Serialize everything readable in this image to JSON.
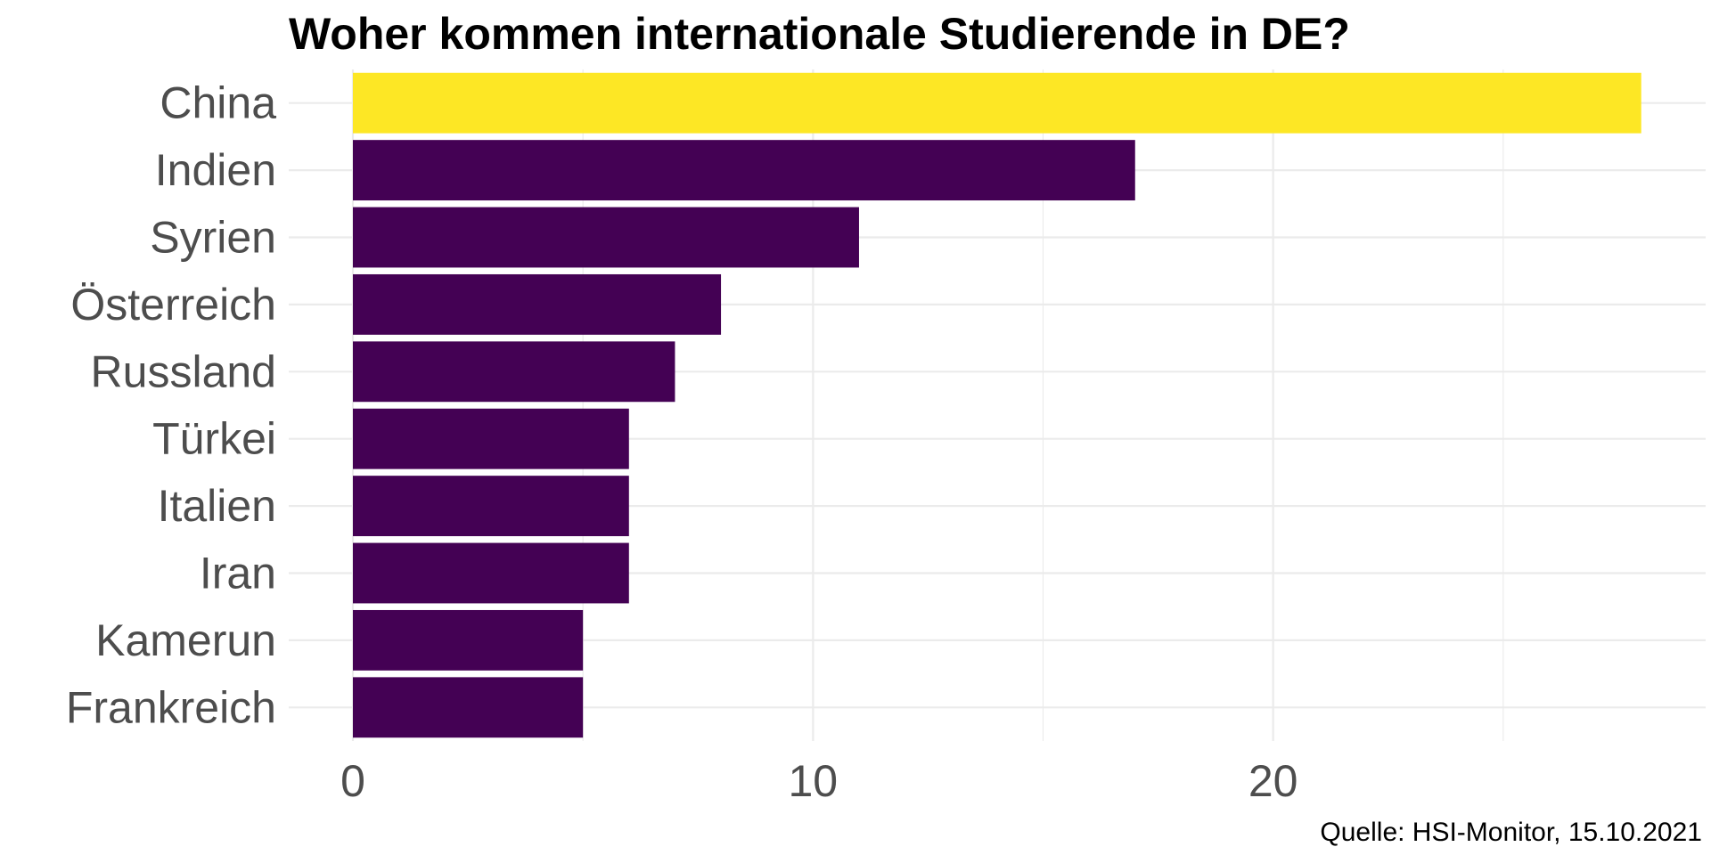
{
  "title": "Woher kommen internationale Studierende in DE?",
  "caption": "Quelle: HSI-Monitor, 15.10.2021",
  "chart_data": {
    "type": "bar",
    "orientation": "horizontal",
    "title": "Woher kommen internationale Studierende in DE?",
    "xlabel": "",
    "ylabel": "",
    "categories": [
      "China",
      "Indien",
      "Syrien",
      "Österreich",
      "Russland",
      "Türkei",
      "Italien",
      "Iran",
      "Kamerun",
      "Frankreich"
    ],
    "values": [
      28,
      17,
      11,
      8,
      7,
      6,
      6,
      6,
      5,
      5
    ],
    "xlim": [
      0,
      29.4
    ],
    "xticks": [
      "0",
      "10",
      "20"
    ],
    "xtick_values": [
      0,
      10,
      20
    ],
    "grid": true,
    "colors": {
      "highlight": "#FDE725",
      "default": "#440154",
      "grid": "#EBEBEB",
      "tick_label": "#4D4D4D"
    },
    "highlight_category": "China"
  }
}
